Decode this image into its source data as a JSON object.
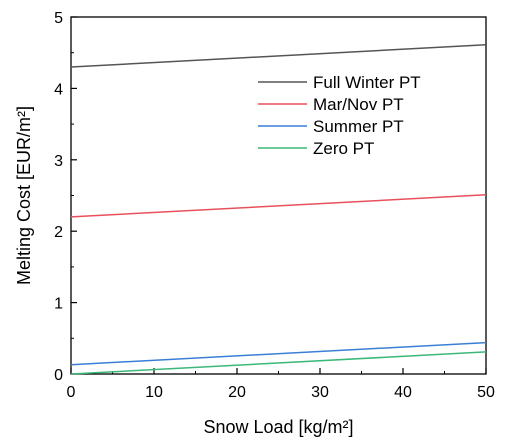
{
  "chart_data": {
    "type": "line",
    "xlabel": "Snow Load [kg/m²]",
    "ylabel": "Melting Cost [EUR/m²]",
    "xlim": [
      0,
      50
    ],
    "ylim": [
      0,
      5
    ],
    "xticks": [
      "0",
      "10",
      "20",
      "30",
      "40",
      "50"
    ],
    "yticks": [
      "0",
      "1",
      "2",
      "3",
      "4",
      "5"
    ],
    "grid": false,
    "legend_position": "top-right",
    "series": [
      {
        "name": "Full Winter PT",
        "color": "#555555",
        "x": [
          0,
          50
        ],
        "y": [
          4.3,
          4.61
        ]
      },
      {
        "name": "Mar/Nov PT",
        "color": "#e8505b",
        "x": [
          0,
          50
        ],
        "y": [
          2.2,
          2.51
        ]
      },
      {
        "name": "Summer PT",
        "color": "#3a7fd5",
        "x": [
          0,
          50
        ],
        "y": [
          0.13,
          0.44
        ]
      },
      {
        "name": "Zero PT",
        "color": "#3cb878",
        "x": [
          0,
          50
        ],
        "y": [
          0.0,
          0.31
        ]
      }
    ]
  }
}
